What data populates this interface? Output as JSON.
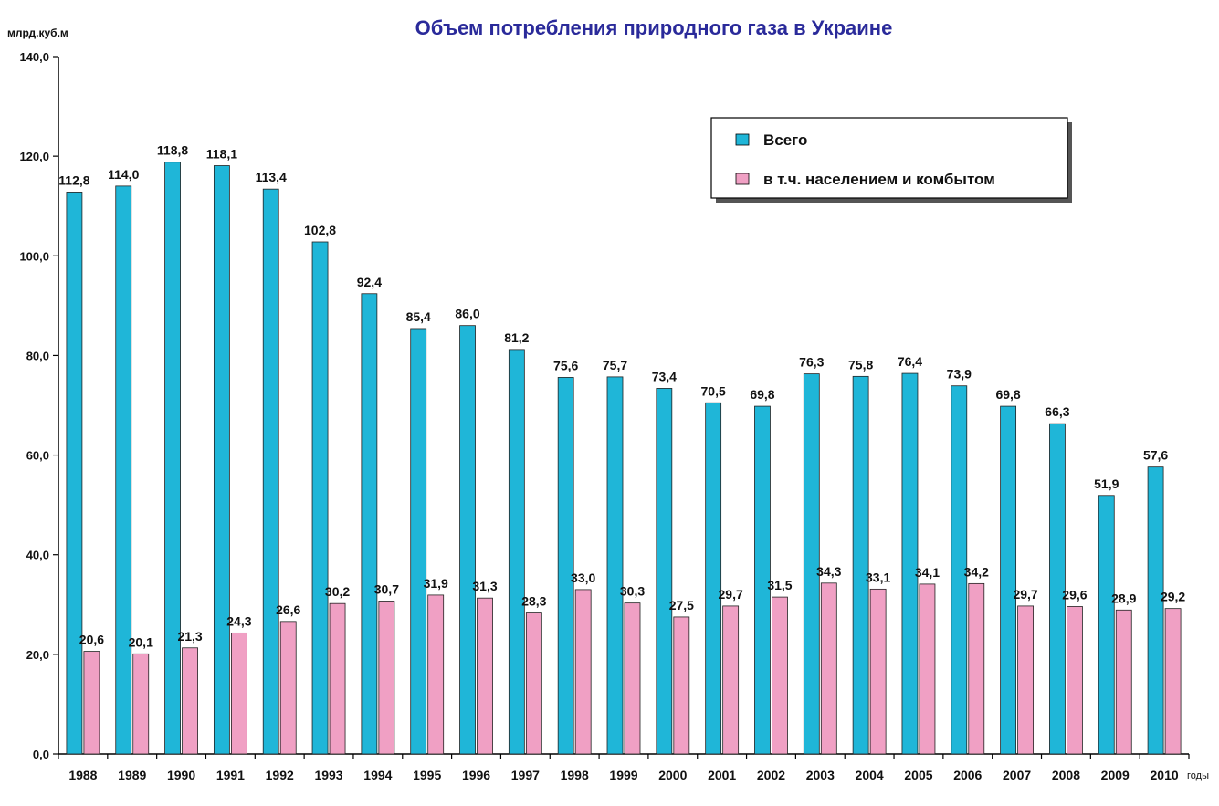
{
  "chart_data": {
    "type": "bar",
    "title": "Объем потребления природного газа в Украине",
    "ylabel": "млрд.куб.м",
    "xlabel": "годы",
    "ylim": [
      0,
      140
    ],
    "yticks": [
      "0,0",
      "20,0",
      "40,0",
      "60,0",
      "80,0",
      "100,0",
      "120,0",
      "140,0"
    ],
    "categories": [
      "1988",
      "1989",
      "1990",
      "1991",
      "1992",
      "1993",
      "1994",
      "1995",
      "1996",
      "1997",
      "1998",
      "1999",
      "2000",
      "2001",
      "2002",
      "2003",
      "2004",
      "2005",
      "2006",
      "2007",
      "2008",
      "2009",
      "2010"
    ],
    "series": [
      {
        "name": "Всего",
        "color": "#1fb6d8",
        "values": [
          112.8,
          114.0,
          118.8,
          118.1,
          113.4,
          102.8,
          92.4,
          85.4,
          86.0,
          81.2,
          75.6,
          75.7,
          73.4,
          70.5,
          69.8,
          76.3,
          75.8,
          76.4,
          73.9,
          69.8,
          66.3,
          51.9,
          57.6
        ],
        "labels": [
          "112,8",
          "114,0",
          "118,8",
          "118,1",
          "113,4",
          "102,8",
          "92,4",
          "85,4",
          "86,0",
          "81,2",
          "75,6",
          "75,7",
          "73,4",
          "70,5",
          "69,8",
          "76,3",
          "75,8",
          "76,4",
          "73,9",
          "69,8",
          "66,3",
          "51,9",
          "57,6"
        ]
      },
      {
        "name": "в т.ч. населением и комбытом",
        "color": "#f0a0c4",
        "values": [
          20.6,
          20.1,
          21.3,
          24.3,
          26.6,
          30.2,
          30.7,
          31.9,
          31.3,
          28.3,
          33.0,
          30.3,
          27.5,
          29.7,
          31.5,
          34.3,
          33.1,
          34.1,
          34.2,
          29.7,
          29.6,
          28.9,
          29.2
        ],
        "labels": [
          "20,6",
          "20,1",
          "21,3",
          "24,3",
          "26,6",
          "30,2",
          "30,7",
          "31,9",
          "31,3",
          "28,3",
          "33,0",
          "30,3",
          "27,5",
          "29,7",
          "31,5",
          "34,3",
          "33,1",
          "34,1",
          "34,2",
          "29,7",
          "29,6",
          "28,9",
          "29,2"
        ]
      }
    ],
    "grid": false,
    "legend_position": "top-right"
  }
}
